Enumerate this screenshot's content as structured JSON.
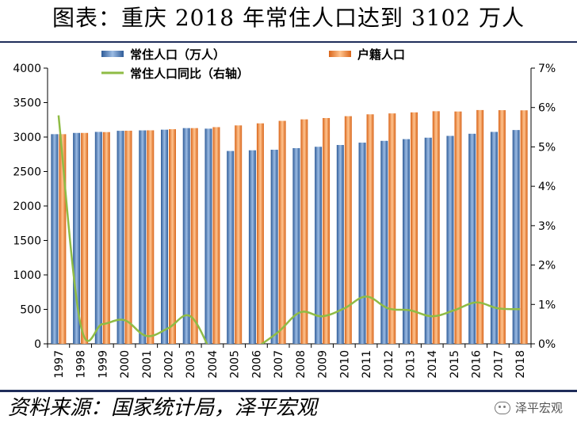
{
  "page": {
    "title": "图表：重庆 2018 年常住人口达到 3102 万人",
    "source": "资料来源：国家统计局，泽平宏观",
    "watermark": "泽平宏观"
  },
  "colors": {
    "resident_bar": "#4f81bd",
    "registered_bar": "#f79646",
    "yoy_line": "#8fbc45",
    "rule": "#1f2d5a"
  },
  "chart_data": {
    "type": "bar",
    "title": "",
    "categories": [
      "1997",
      "1998",
      "1999",
      "2000",
      "2001",
      "2002",
      "2003",
      "2004",
      "2005",
      "2006",
      "2007",
      "2008",
      "2009",
      "2010",
      "2011",
      "2012",
      "2013",
      "2014",
      "2015",
      "2016",
      "2017",
      "2018"
    ],
    "series": [
      {
        "name": "常住人口（万人）",
        "type": "bar",
        "axis": "left",
        "values": [
          3042,
          3060,
          3075,
          3091,
          3097,
          3107,
          3130,
          3122,
          2798,
          2808,
          2816,
          2839,
          2859,
          2885,
          2919,
          2945,
          2970,
          2991,
          3017,
          3048,
          3075,
          3102
        ]
      },
      {
        "name": "户籍人口",
        "type": "bar",
        "axis": "left",
        "values": [
          3042,
          3060,
          3072,
          3092,
          3098,
          3114,
          3130,
          3144,
          3169,
          3199,
          3235,
          3257,
          3276,
          3303,
          3330,
          3343,
          3358,
          3375,
          3371,
          3392,
          3390,
          3388
        ]
      },
      {
        "name": "常住人口同比（右轴）",
        "type": "line",
        "axis": "right",
        "values": [
          5.8,
          0.5,
          0.5,
          0.6,
          0.2,
          0.4,
          0.7,
          -0.3,
          null,
          -0.1,
          0.3,
          0.8,
          0.7,
          0.9,
          1.2,
          0.9,
          0.85,
          0.7,
          0.85,
          1.05,
          0.9,
          0.88
        ]
      }
    ],
    "y_left": {
      "min": 0,
      "max": 4000,
      "ticks": [
        0,
        500,
        1000,
        1500,
        2000,
        2500,
        3000,
        3500,
        4000
      ]
    },
    "y_right": {
      "min": 0,
      "max": 7,
      "ticks": [
        "0%",
        "1%",
        "2%",
        "3%",
        "4%",
        "5%",
        "6%",
        "7%"
      ]
    },
    "grid": false,
    "legend": "top"
  }
}
